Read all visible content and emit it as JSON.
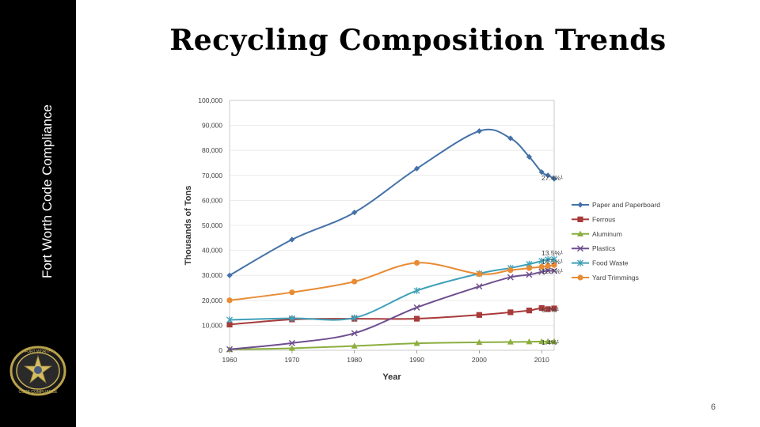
{
  "sidebar": {
    "text": "Fort Worth Code Compliance",
    "logo_lines": [
      "FORT WORTH",
      "CODE COMPLIANCE"
    ]
  },
  "slide": {
    "title": "Recycling Composition Trends",
    "page_number": "6"
  },
  "colors": {
    "paper": "#4472A8",
    "ferrous": "#A83A3A",
    "aluminum": "#8AAE3E",
    "plastics": "#6D4E8E",
    "food": "#3FA0B8",
    "yard": "#E88C34"
  },
  "chart_data": {
    "type": "line",
    "xlabel": "Year",
    "ylabel": "Thousands of Tons",
    "xlim": [
      1960,
      2012
    ],
    "ylim": [
      0,
      100000
    ],
    "xticks": [
      "1960",
      "1970",
      "1980",
      "1990",
      "2000",
      "2010"
    ],
    "yticks": [
      "0",
      "10,000",
      "20,000",
      "30,000",
      "40,000",
      "50,000",
      "60,000",
      "70,000",
      "80,000",
      "90,000",
      "100,000"
    ],
    "legend_position": "right",
    "series": [
      {
        "name": "Paper and Paperboard",
        "color_key": "paper",
        "marker": "diamond",
        "x": [
          1960,
          1970,
          1980,
          1990,
          2000,
          2005,
          2008,
          2010,
          2011,
          2012
        ],
        "y": [
          29990,
          44310,
          55160,
          72730,
          87740,
          84840,
          77420,
          71310,
          70020,
          68620
        ],
        "end_label": "27.4%¹"
      },
      {
        "name": "Ferrous",
        "color_key": "ferrous",
        "marker": "square",
        "x": [
          1960,
          1970,
          1980,
          1990,
          2000,
          2005,
          2008,
          2010,
          2011,
          2012
        ],
        "y": [
          10300,
          12360,
          12620,
          12640,
          14150,
          15210,
          15940,
          16900,
          16490,
          16760
        ],
        "end_label": "6.7%¹"
      },
      {
        "name": "Aluminum",
        "color_key": "aluminum",
        "marker": "triangle",
        "x": [
          1960,
          1970,
          1980,
          1990,
          2000,
          2005,
          2008,
          2010,
          2011,
          2012
        ],
        "y": [
          340,
          800,
          1730,
          2810,
          3190,
          3330,
          3410,
          3510,
          3530,
          3530
        ],
        "end_label": "1.4%¹"
      },
      {
        "name": "Plastics",
        "color_key": "plastics",
        "marker": "x",
        "x": [
          1960,
          1970,
          1980,
          1990,
          2000,
          2005,
          2008,
          2010,
          2011,
          2012
        ],
        "y": [
          390,
          2900,
          6830,
          17130,
          25550,
          29250,
          30250,
          31400,
          31840,
          31750
        ],
        "end_label": "12.7%¹"
      },
      {
        "name": "Food Waste",
        "color_key": "food",
        "marker": "star",
        "x": [
          1960,
          1970,
          1980,
          1990,
          2000,
          2005,
          2008,
          2010,
          2011,
          2012
        ],
        "y": [
          12200,
          12800,
          13000,
          23860,
          30700,
          32930,
          34490,
          35740,
          36310,
          36430
        ],
        "end_label": "14.5%¹"
      },
      {
        "name": "Yard Trimmings",
        "color_key": "yard",
        "marker": "circle",
        "x": [
          1960,
          1970,
          1980,
          1990,
          2000,
          2005,
          2008,
          2010,
          2011,
          2012
        ],
        "y": [
          20000,
          23200,
          27500,
          35000,
          30530,
          32070,
          32900,
          33400,
          33710,
          34110
        ],
        "end_label": "13.5%¹"
      }
    ]
  }
}
